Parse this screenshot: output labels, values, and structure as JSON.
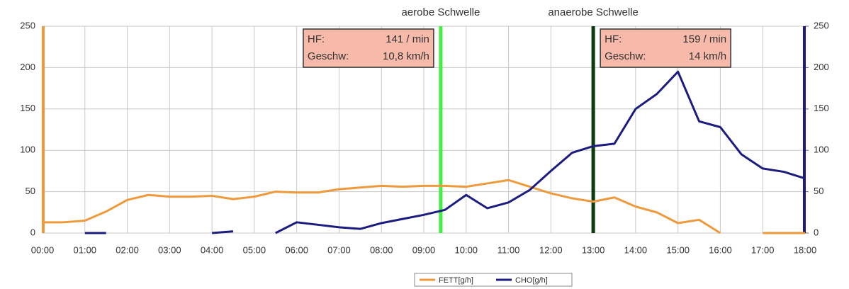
{
  "chart_data": {
    "type": "line",
    "x": [
      0,
      0.5,
      1,
      1.5,
      2,
      2.5,
      3,
      3.5,
      4,
      4.5,
      5,
      5.5,
      6,
      6.5,
      7,
      7.5,
      8,
      8.5,
      9,
      9.5,
      10,
      10.5,
      11,
      11.5,
      12,
      12.5,
      13,
      13.5,
      14,
      14.5,
      15,
      15.5,
      16,
      16.5,
      17,
      17.5,
      18
    ],
    "series": [
      {
        "name": "FETT[g/h]",
        "color": "#ee9a3c",
        "values": [
          13,
          13,
          15,
          26,
          40,
          46,
          44,
          44,
          45,
          41,
          44,
          50,
          49,
          49,
          53,
          55,
          57,
          56,
          57,
          57,
          56,
          60,
          64,
          56,
          48,
          42,
          38,
          43,
          32,
          25,
          12,
          16,
          0,
          null,
          0,
          0,
          0
        ]
      },
      {
        "name": "CHO[g/h]",
        "color": "#1c1c80",
        "axis": "y2",
        "values": [
          null,
          null,
          0,
          0,
          null,
          null,
          null,
          null,
          0,
          2,
          null,
          0,
          13,
          10,
          7,
          5,
          12,
          17,
          22,
          28,
          46,
          30,
          37,
          52,
          75,
          97,
          105,
          108,
          150,
          168,
          195,
          135,
          128,
          95,
          78,
          74,
          66
        ]
      }
    ],
    "xlim": [
      0,
      18
    ],
    "xticks": [
      {
        "value": 0,
        "label": "00:00"
      },
      {
        "value": 1,
        "label": "01:00"
      },
      {
        "value": 2,
        "label": "02:00"
      },
      {
        "value": 3,
        "label": "03:00"
      },
      {
        "value": 4,
        "label": "04:00"
      },
      {
        "value": 5,
        "label": "05:00"
      },
      {
        "value": 6,
        "label": "06:00"
      },
      {
        "value": 7,
        "label": "07:00"
      },
      {
        "value": 8,
        "label": "08:00"
      },
      {
        "value": 9,
        "label": "09:00"
      },
      {
        "value": 10,
        "label": "10:00"
      },
      {
        "value": 11,
        "label": "11:00"
      },
      {
        "value": 12,
        "label": "12:00"
      },
      {
        "value": 13,
        "label": "13:00"
      },
      {
        "value": 14,
        "label": "14:00"
      },
      {
        "value": 15,
        "label": "15:00"
      },
      {
        "value": 16,
        "label": "16:00"
      },
      {
        "value": 17,
        "label": "17:00"
      },
      {
        "value": 18,
        "label": "18:00"
      }
    ],
    "ylim": [
      0,
      250
    ],
    "yticks": [
      0,
      50,
      100,
      150,
      200,
      250
    ],
    "y2lim": [
      0,
      250
    ],
    "y2ticks": [
      0,
      50,
      100,
      150,
      200,
      250
    ],
    "grid": true,
    "annotations": [
      {
        "x": 9.4,
        "label": "aerobe Schwelle",
        "color": "#44ee44",
        "box": [
          [
            "HF:",
            "141 / min"
          ],
          [
            "Geschw:",
            "10,8 km/h"
          ]
        ]
      },
      {
        "x": 13.0,
        "label": "anaerobe Schwelle",
        "color": "#0b3a0b",
        "box": [
          [
            "HF:",
            "159 / min"
          ],
          [
            "Geschw:",
            "14 km/h"
          ]
        ]
      }
    ]
  }
}
